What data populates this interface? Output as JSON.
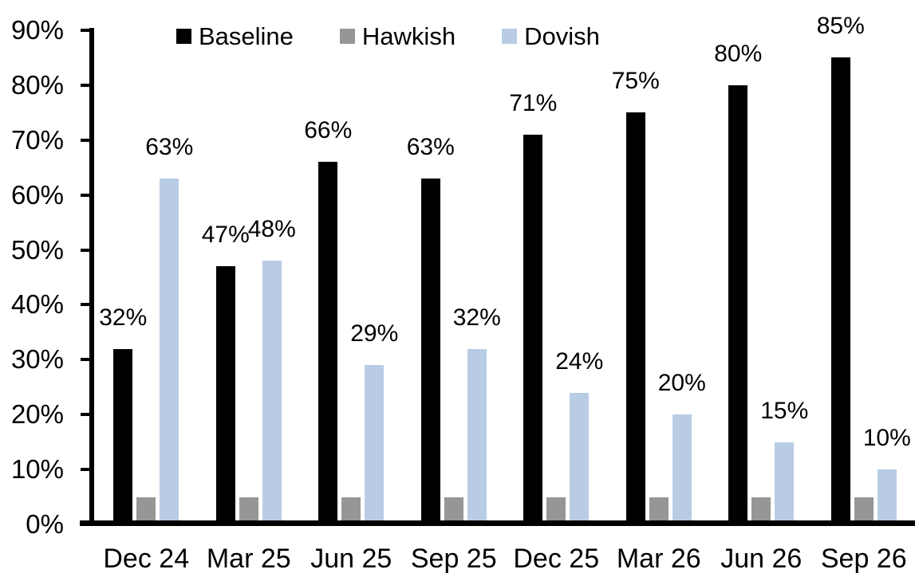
{
  "chart_data": {
    "type": "bar",
    "title": "",
    "categories": [
      "Dec 24",
      "Mar 25",
      "Jun 25",
      "Sep 25",
      "Dec 25",
      "Mar 26",
      "Jun 26",
      "Sep 26"
    ],
    "series": [
      {
        "name": "Baseline",
        "color": "#000000",
        "values": [
          32,
          47,
          66,
          63,
          71,
          75,
          80,
          85
        ],
        "show_labels": true
      },
      {
        "name": "Hawkish",
        "color": "#969696",
        "values": [
          5,
          5,
          5,
          5,
          5,
          5,
          5,
          5
        ],
        "show_labels": false
      },
      {
        "name": "Dovish",
        "color": "#B8CCE4",
        "values": [
          63,
          48,
          29,
          32,
          24,
          20,
          15,
          10
        ],
        "show_labels": true
      }
    ],
    "data_label_suffix": "%",
    "yticks": [
      "0%",
      "10%",
      "20%",
      "30%",
      "40%",
      "50%",
      "60%",
      "70%",
      "80%",
      "90%"
    ],
    "ylim": [
      0,
      90
    ],
    "grid": false,
    "legend_position": "top",
    "axis_color": "#000000",
    "background": "#FFFFFF"
  }
}
